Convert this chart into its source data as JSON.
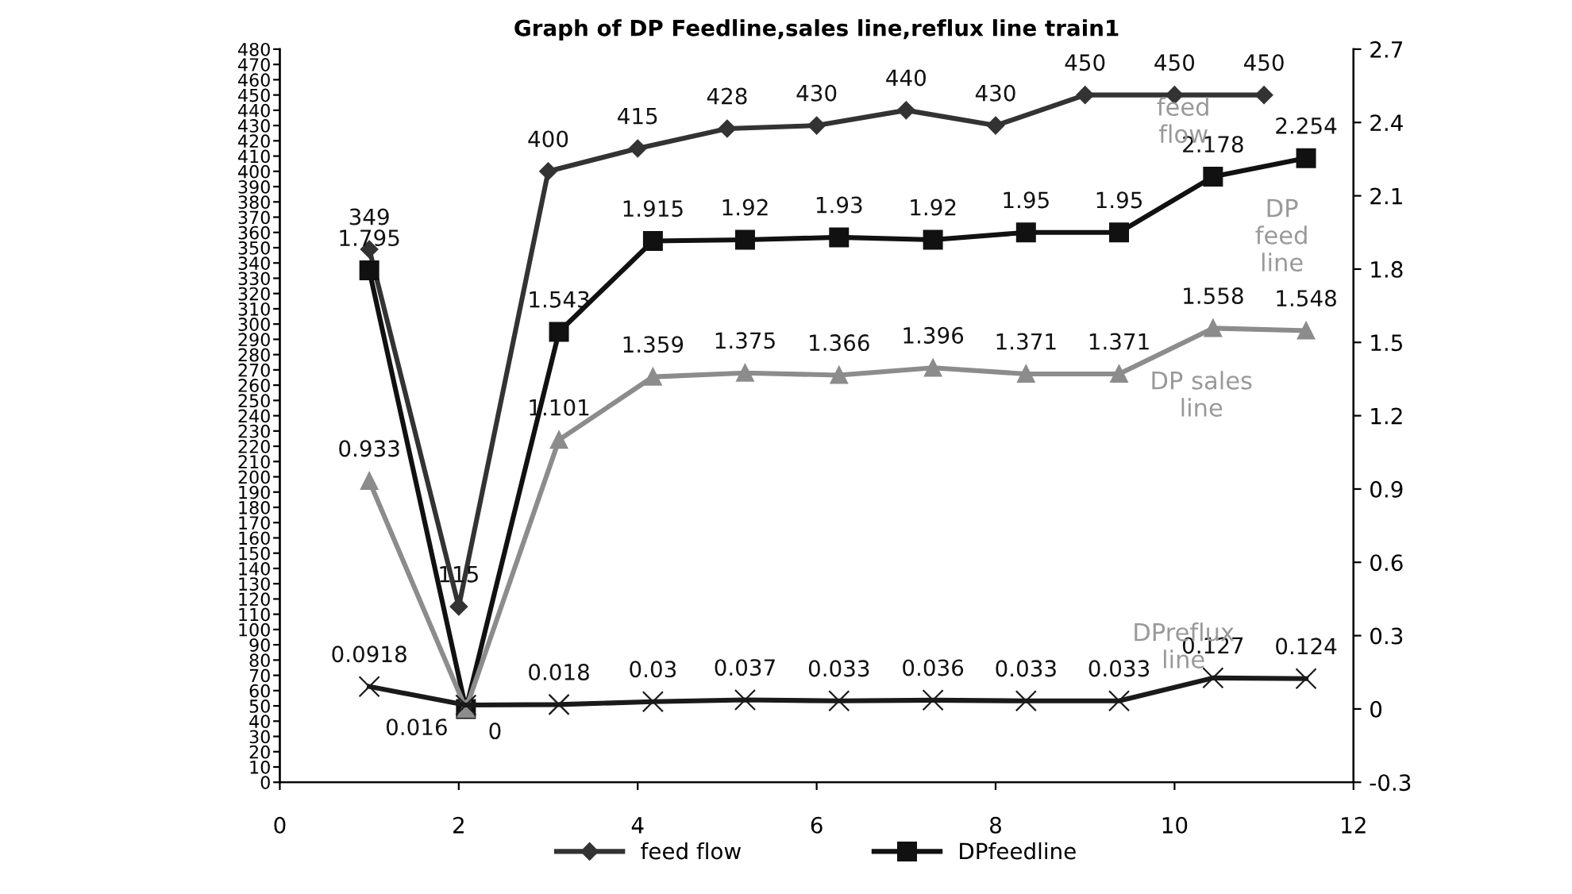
{
  "chart_data": {
    "type": "line",
    "title": "Graph of DP Feedline,sales line,reflux line train1",
    "xlim": [
      0,
      12
    ],
    "xticks": [
      0,
      2,
      4,
      6,
      8,
      10,
      12
    ],
    "ylim": [
      0,
      480
    ],
    "yticks": [
      0,
      10,
      20,
      30,
      40,
      50,
      60,
      70,
      80,
      90,
      100,
      110,
      120,
      130,
      140,
      150,
      160,
      170,
      180,
      190,
      200,
      210,
      220,
      230,
      240,
      250,
      260,
      270,
      280,
      290,
      300,
      310,
      320,
      330,
      340,
      350,
      360,
      370,
      380,
      390,
      400,
      410,
      420,
      430,
      440,
      450,
      460,
      470,
      480
    ],
    "y2lim": [
      -0.3,
      2.7
    ],
    "y2ticks": [
      -0.3,
      0,
      0.3,
      0.6,
      0.9,
      1.2,
      1.5,
      1.8,
      2.1,
      2.4,
      2.7
    ],
    "grid": false,
    "legend": "bottom",
    "series": [
      {
        "name": "feed flow",
        "color": "#333333",
        "marker": "diamond",
        "x": [
          1,
          2,
          3,
          4,
          5,
          6,
          7,
          8,
          9,
          10,
          11
        ],
        "values": [
          349,
          115,
          400,
          415,
          428,
          430,
          440,
          430,
          450,
          450,
          450
        ],
        "value_labels": [
          "349",
          "115",
          "400",
          "415",
          "428",
          "430",
          "440",
          "430",
          "450",
          "450",
          "450"
        ]
      },
      {
        "name": "DPfeedline",
        "color": "#111111",
        "marker": "square",
        "axis": "y2",
        "x": [
          1,
          2.08,
          3.12,
          4.17,
          5.2,
          6.25,
          7.3,
          8.34,
          9.38,
          10.43,
          11.47
        ],
        "values": [
          1.795,
          0,
          1.543,
          1.915,
          1.92,
          1.93,
          1.92,
          1.95,
          1.95,
          2.178,
          2.254
        ],
        "value_labels": [
          "1.795",
          "0",
          "1.543",
          "1.915",
          "1.92",
          "1.93",
          "1.92",
          "1.95",
          "1.95",
          "2.178",
          "2.254"
        ]
      },
      {
        "color": "#8c8c8c",
        "marker": "triangle",
        "axis": "y2",
        "x": [
          1,
          2.08,
          3.12,
          4.17,
          5.2,
          6.25,
          7.3,
          8.34,
          9.38,
          10.43,
          11.47
        ],
        "values": [
          0.933,
          0,
          1.101,
          1.359,
          1.375,
          1.366,
          1.396,
          1.371,
          1.371,
          1.558,
          1.548
        ],
        "value_labels": [
          "0.933",
          null,
          "1.101",
          "1.359",
          "1.375",
          "1.366",
          "1.396",
          "1.371",
          "1.371",
          "1.558",
          "1.548"
        ]
      },
      {
        "color": "#1a1a1a",
        "marker": "cross",
        "axis": "y2",
        "x": [
          1,
          2.08,
          3.12,
          4.17,
          5.2,
          6.25,
          7.3,
          8.34,
          9.38,
          10.43,
          11.47
        ],
        "values": [
          0.0918,
          0.016,
          0.018,
          0.03,
          0.037,
          0.033,
          0.036,
          0.033,
          0.033,
          0.127,
          0.124
        ],
        "value_labels": [
          "0.0918",
          "0.016",
          "0.018",
          "0.03",
          "0.037",
          "0.033",
          "0.036",
          "0.033",
          "0.033",
          "0.127",
          "0.124"
        ]
      }
    ],
    "annotations": [
      "feed\nflow",
      "DP\nfeed\nline",
      "DP sales\nline",
      "DPreflux\nline"
    ]
  }
}
